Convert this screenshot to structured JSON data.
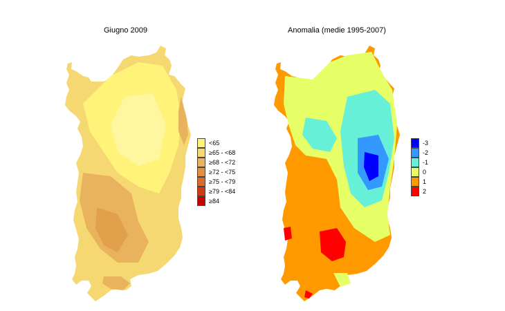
{
  "panels": [
    {
      "title": "Giugno 2009",
      "legend": [
        {
          "label": "<65",
          "color": "#fff37a"
        },
        {
          "label": "≥65 - <68",
          "color": "#f6d873"
        },
        {
          "label": "≥68 - <72",
          "color": "#e9b35d"
        },
        {
          "label": "≥72 - <75",
          "color": "#e28f3f"
        },
        {
          "label": "≥75 - <79",
          "color": "#dc6a28"
        },
        {
          "label": "≥79 - <84",
          "color": "#d33a14"
        },
        {
          "label": "≥84",
          "color": "#c40000"
        }
      ]
    },
    {
      "title": "Anomalia (medie 1995-2007)",
      "legend": [
        {
          "label": "-3",
          "color": "#0000ff"
        },
        {
          "label": "-2",
          "color": "#3399ff"
        },
        {
          "label": "-1",
          "color": "#66f0d8"
        },
        {
          "label": "0",
          "color": "#e6ff66"
        },
        {
          "label": "1",
          "color": "#ff9900"
        },
        {
          "label": "2",
          "color": "#ff0000"
        }
      ]
    }
  ]
}
